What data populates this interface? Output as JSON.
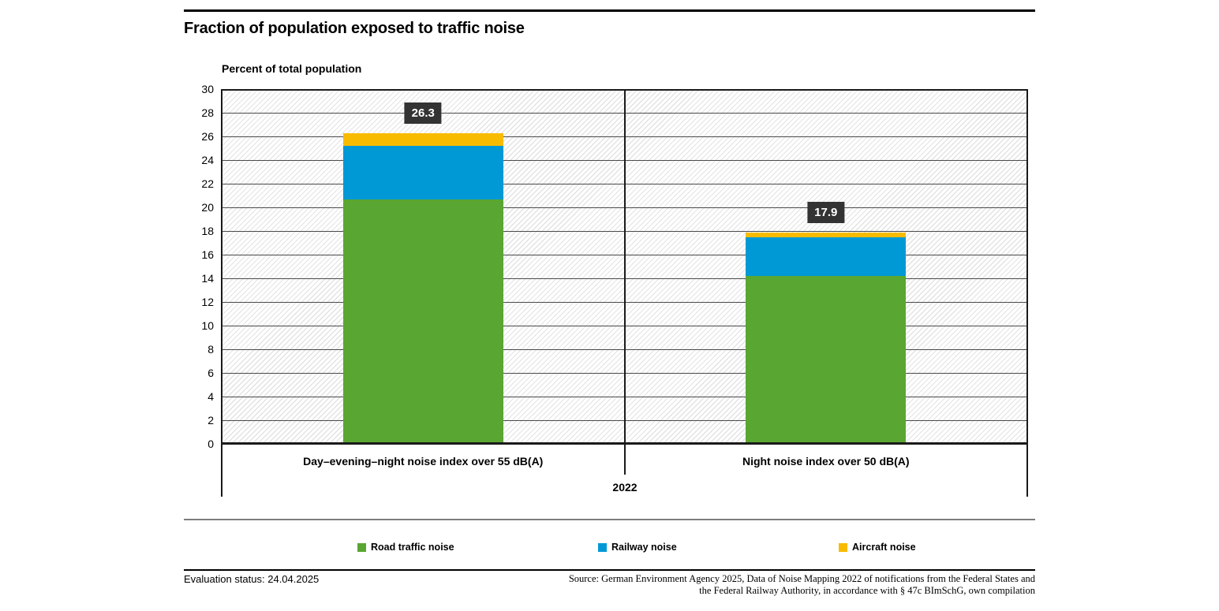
{
  "header": {
    "title": "Fraction of population exposed to traffic noise"
  },
  "chart_data": {
    "type": "bar",
    "stacked": true,
    "title": "Fraction of population exposed to traffic noise",
    "axis_title": "Percent of total population",
    "categories": [
      "Day–evening–night noise index over 55 dB(A)",
      "Night noise index over 50 dB(A)"
    ],
    "group_label": "2022",
    "series": [
      {
        "name": "Road traffic noise",
        "color": "#5AA632",
        "values": [
          20.7,
          14.2
        ]
      },
      {
        "name": "Railway noise",
        "color": "#0099D6",
        "values": [
          4.5,
          3.3
        ]
      },
      {
        "name": "Aircraft noise",
        "color": "#F8BB00",
        "values": [
          1.1,
          0.4
        ]
      }
    ],
    "totals": [
      26.3,
      17.9
    ],
    "total_labels": [
      "26.3",
      "17.9"
    ],
    "ylim": [
      0,
      30
    ],
    "yticks": [
      0,
      2,
      4,
      6,
      8,
      10,
      12,
      14,
      16,
      18,
      20,
      22,
      24,
      26,
      28,
      30
    ],
    "grid": true,
    "legend_position": "bottom",
    "value_label_bg": "#333333",
    "value_label_color": "#ffffff"
  },
  "footer": {
    "status": "Evaluation status: 24.04.2025",
    "source_lines": [
      "Source: German Environment Agency 2025, Data of Noise Mapping 2022 of notifications from the Federal States and",
      "the Federal Railway Authority, in accordance with § 47c BImSchG, own compilation"
    ]
  }
}
